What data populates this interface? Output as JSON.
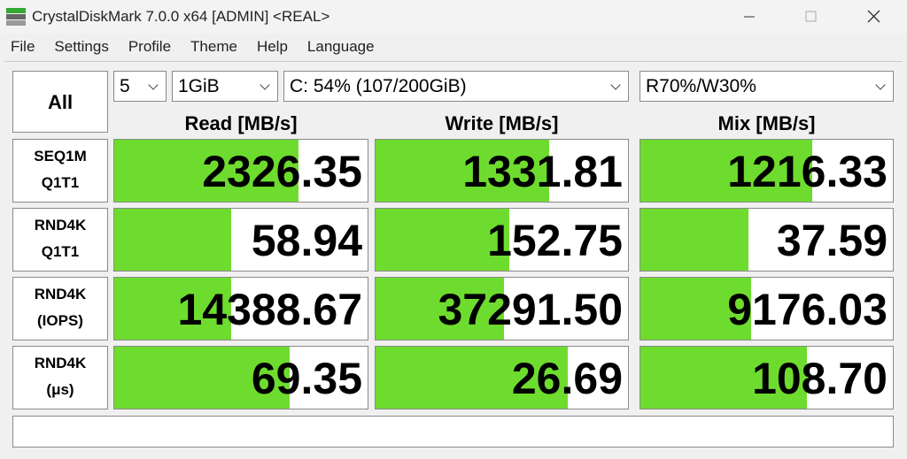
{
  "window": {
    "title": "CrystalDiskMark 7.0.0 x64 [ADMIN] <REAL>"
  },
  "menu": [
    "File",
    "Settings",
    "Profile",
    "Theme",
    "Help",
    "Language"
  ],
  "controls": {
    "all": "All",
    "count": "5",
    "size": "1GiB",
    "drive": "C: 54% (107/200GiB)",
    "mix": "R70%/W30%"
  },
  "headers": [
    "Read [MB/s]",
    "Write [MB/s]",
    "Mix [MB/s]"
  ],
  "rows": [
    {
      "label": [
        "SEQ1M",
        "Q1T1"
      ],
      "values": [
        "2326.35",
        "1331.81",
        "1216.33"
      ]
    },
    {
      "label": [
        "RND4K",
        "Q1T1"
      ],
      "values": [
        "58.94",
        "152.75",
        "37.59"
      ]
    },
    {
      "label": [
        "RND4K",
        "(IOPS)"
      ],
      "values": [
        "14388.67",
        "37291.50",
        "9176.03"
      ]
    },
    {
      "label": [
        "RND4K",
        "(μs)"
      ],
      "values": [
        "69.35",
        "26.69",
        "108.70"
      ]
    }
  ]
}
